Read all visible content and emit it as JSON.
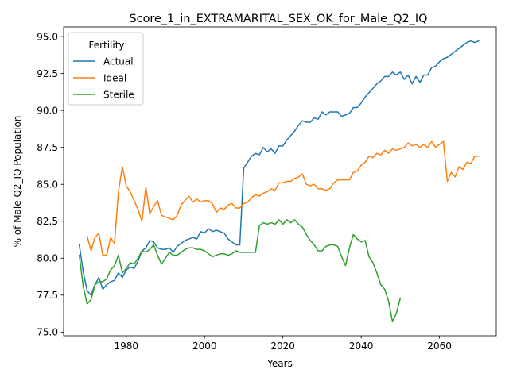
{
  "chart_data": {
    "type": "line",
    "title": "Score_1_in_EXTRAMARITAL_SEX_OK_for_Male_Q2_IQ",
    "xlabel": "Years",
    "ylabel": "% of Male Q2_IQ Population",
    "xlim": [
      1964,
      2074.5
    ],
    "ylim": [
      74.75,
      95.65
    ],
    "xticks": [
      1980,
      2000,
      2020,
      2040,
      2060
    ],
    "xtick_labels": [
      "1980",
      "2000",
      "2020",
      "2040",
      "2060"
    ],
    "yticks": [
      75.0,
      77.5,
      80.0,
      82.5,
      85.0,
      87.5,
      90.0,
      92.5,
      95.0
    ],
    "ytick_labels": [
      "75.0",
      "77.5",
      "80.0",
      "82.5",
      "85.0",
      "87.5",
      "90.0",
      "92.5",
      "95.0"
    ],
    "grid": false,
    "legend": {
      "title": "Fertility",
      "position": "top-left"
    },
    "series": [
      {
        "name": "Actual",
        "color": "#1f77b4",
        "x": [
          1968,
          1969,
          1970,
          1971,
          1972,
          1973,
          1974,
          1975,
          1976,
          1977,
          1978,
          1979,
          1980,
          1981,
          1982,
          1983,
          1984,
          1985,
          1986,
          1987,
          1988,
          1989,
          1990,
          1991,
          1992,
          1993,
          1994,
          1995,
          1996,
          1997,
          1998,
          1999,
          2000,
          2001,
          2002,
          2003,
          2004,
          2005,
          2006,
          2007,
          2008,
          2009,
          2010,
          2011,
          2012,
          2013,
          2014,
          2015,
          2016,
          2017,
          2018,
          2019,
          2020,
          2021,
          2022,
          2023,
          2024,
          2025,
          2026,
          2027,
          2028,
          2029,
          2030,
          2031,
          2032,
          2033,
          2034,
          2035,
          2036,
          2037,
          2038,
          2039,
          2040,
          2041,
          2042,
          2043,
          2044,
          2045,
          2046,
          2047,
          2048,
          2049,
          2050,
          2051,
          2052,
          2053,
          2054,
          2055,
          2056,
          2057,
          2058,
          2059,
          2060,
          2061,
          2062,
          2063,
          2064,
          2065,
          2066,
          2067,
          2068,
          2069,
          2070
        ],
        "y": [
          80.9,
          79.1,
          77.8,
          77.5,
          78.2,
          78.7,
          77.9,
          78.2,
          78.4,
          78.5,
          79.0,
          78.7,
          79.2,
          79.4,
          79.3,
          79.8,
          80.5,
          80.7,
          81.2,
          81.1,
          80.7,
          80.6,
          80.6,
          80.7,
          80.4,
          80.8,
          81.0,
          81.2,
          81.3,
          81.4,
          81.3,
          81.8,
          81.7,
          82.0,
          81.8,
          81.9,
          81.8,
          81.7,
          81.3,
          81.1,
          80.9,
          80.9,
          86.1,
          86.5,
          86.9,
          87.1,
          87.0,
          87.5,
          87.2,
          87.4,
          87.1,
          87.6,
          87.6,
          88.0,
          88.3,
          88.6,
          89.0,
          89.3,
          89.2,
          89.2,
          89.5,
          89.4,
          89.9,
          89.7,
          89.9,
          89.9,
          89.9,
          89.6,
          89.7,
          89.8,
          90.2,
          90.2,
          90.5,
          90.9,
          91.2,
          91.5,
          91.8,
          92.0,
          92.3,
          92.3,
          92.6,
          92.4,
          92.6,
          92.1,
          92.4,
          91.8,
          92.3,
          91.9,
          92.4,
          92.4,
          92.9,
          93.0,
          93.3,
          93.5,
          93.6,
          93.8,
          94.0,
          94.2,
          94.4,
          94.6,
          94.7,
          94.6,
          94.7
        ]
      },
      {
        "name": "Ideal",
        "color": "#ff7f0e",
        "x": [
          1970,
          1971,
          1972,
          1973,
          1974,
          1975,
          1976,
          1977,
          1978,
          1979,
          1980,
          1981,
          1982,
          1983,
          1984,
          1985,
          1986,
          1987,
          1988,
          1989,
          1990,
          1991,
          1992,
          1993,
          1994,
          1995,
          1996,
          1997,
          1998,
          1999,
          2000,
          2001,
          2002,
          2003,
          2004,
          2005,
          2006,
          2007,
          2008,
          2009,
          2010,
          2011,
          2012,
          2013,
          2014,
          2015,
          2016,
          2017,
          2018,
          2019,
          2020,
          2021,
          2022,
          2023,
          2024,
          2025,
          2026,
          2027,
          2028,
          2029,
          2030,
          2031,
          2032,
          2033,
          2034,
          2035,
          2036,
          2037,
          2038,
          2039,
          2040,
          2041,
          2042,
          2043,
          2044,
          2045,
          2046,
          2047,
          2048,
          2049,
          2050,
          2051,
          2052,
          2053,
          2054,
          2055,
          2056,
          2057,
          2058,
          2059,
          2060,
          2061,
          2062,
          2063,
          2064,
          2065,
          2066,
          2067,
          2068,
          2069,
          2070
        ],
        "y": [
          81.5,
          80.5,
          81.4,
          81.7,
          80.2,
          80.2,
          81.4,
          81.0,
          84.5,
          86.2,
          84.9,
          84.5,
          83.9,
          83.3,
          82.5,
          84.8,
          83.0,
          83.5,
          83.9,
          82.9,
          82.8,
          82.7,
          82.6,
          82.9,
          83.6,
          83.9,
          84.2,
          83.8,
          84.0,
          83.8,
          83.9,
          83.9,
          83.7,
          83.1,
          83.4,
          83.3,
          83.6,
          83.7,
          83.4,
          83.4,
          83.7,
          83.8,
          84.1,
          84.3,
          84.2,
          84.4,
          84.5,
          84.7,
          84.6,
          85.1,
          85.1,
          85.2,
          85.2,
          85.4,
          85.5,
          85.7,
          85.0,
          84.9,
          85.0,
          84.7,
          84.7,
          84.6,
          84.7,
          85.1,
          85.3,
          85.3,
          85.3,
          85.3,
          85.8,
          85.9,
          86.3,
          86.5,
          86.9,
          86.8,
          87.1,
          87.0,
          87.3,
          87.1,
          87.4,
          87.3,
          87.4,
          87.5,
          87.8,
          87.6,
          87.7,
          87.5,
          87.7,
          87.5,
          87.9,
          87.5,
          87.7,
          87.9,
          85.2,
          85.8,
          85.5,
          86.2,
          86.0,
          86.5,
          86.4,
          86.9,
          86.9
        ]
      },
      {
        "name": "Sterile",
        "color": "#2ca02c",
        "x": [
          1968,
          1969,
          1970,
          1971,
          1972,
          1973,
          1974,
          1975,
          1976,
          1977,
          1978,
          1979,
          1980,
          1981,
          1982,
          1983,
          1984,
          1985,
          1986,
          1987,
          1988,
          1989,
          1990,
          1991,
          1992,
          1993,
          1994,
          1995,
          1996,
          1997,
          1998,
          1999,
          2000,
          2001,
          2002,
          2003,
          2004,
          2005,
          2006,
          2007,
          2008,
          2009,
          2010,
          2011,
          2012,
          2013,
          2014,
          2015,
          2016,
          2017,
          2018,
          2019,
          2020,
          2021,
          2022,
          2023,
          2024,
          2025,
          2026,
          2027,
          2028,
          2029,
          2030,
          2031,
          2032,
          2033,
          2034,
          2035,
          2036,
          2037,
          2038,
          2039,
          2040,
          2041,
          2042,
          2043,
          2044,
          2045,
          2046,
          2047,
          2048,
          2049,
          2050
        ],
        "y": [
          80.2,
          78.1,
          76.9,
          77.2,
          78.2,
          78.4,
          78.4,
          78.6,
          79.2,
          79.5,
          80.2,
          79.0,
          79.3,
          79.7,
          79.6,
          80.0,
          80.5,
          80.4,
          80.6,
          80.9,
          80.2,
          79.6,
          80.0,
          80.4,
          80.2,
          80.2,
          80.4,
          80.6,
          80.7,
          80.7,
          80.6,
          80.6,
          80.5,
          80.3,
          80.1,
          80.2,
          80.3,
          80.3,
          80.2,
          80.3,
          80.5,
          80.4,
          80.4,
          80.4,
          80.4,
          80.4,
          82.2,
          82.4,
          82.3,
          82.4,
          82.3,
          82.6,
          82.3,
          82.6,
          82.4,
          82.6,
          82.3,
          82.1,
          81.6,
          81.2,
          80.9,
          80.5,
          80.5,
          80.8,
          80.9,
          80.9,
          80.8,
          80.1,
          79.5,
          80.7,
          81.6,
          81.3,
          81.1,
          81.2,
          80.1,
          79.7,
          79.0,
          78.2,
          77.9,
          77.1,
          75.7,
          76.3,
          77.3
        ]
      }
    ]
  }
}
